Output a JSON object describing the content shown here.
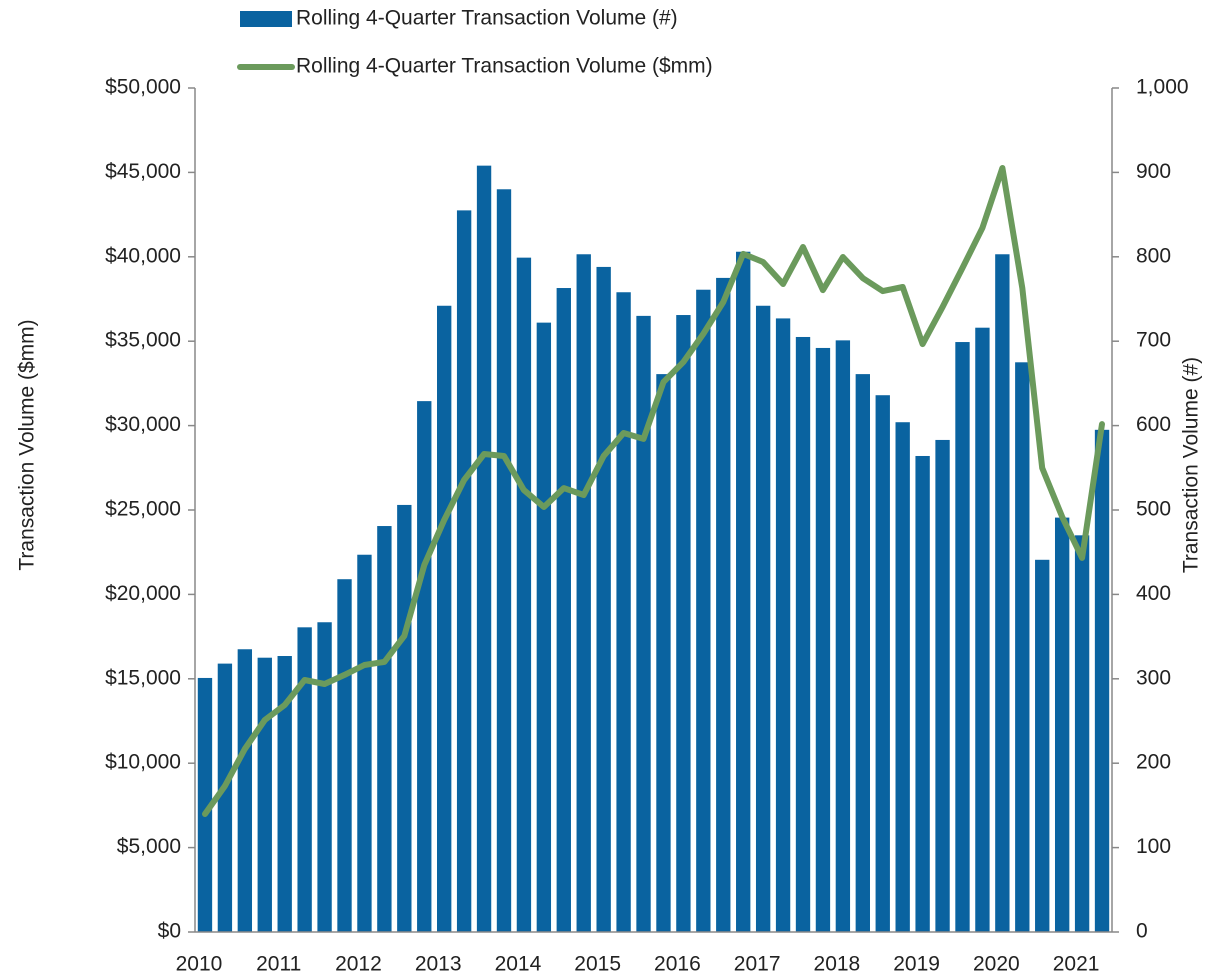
{
  "chart_data": {
    "type": "bar_line",
    "categories": [
      "2010",
      null,
      null,
      null,
      "2011",
      null,
      null,
      null,
      "2012",
      null,
      null,
      null,
      "2013",
      null,
      null,
      null,
      "2014",
      null,
      null,
      null,
      "2015",
      null,
      null,
      null,
      "2016",
      null,
      null,
      null,
      "2017",
      null,
      null,
      null,
      "2018",
      null,
      null,
      null,
      "2019",
      null,
      null,
      null,
      "2020",
      null,
      null,
      null,
      "2021",
      null
    ],
    "ylabel": "Transaction Volume ($mm)",
    "y2label": "Transaction Volume (#)",
    "ylim": [
      0,
      50000
    ],
    "yticks": [
      {
        "value": 0,
        "label": "$0"
      },
      {
        "value": 5000,
        "label": "$5,000"
      },
      {
        "value": 10000,
        "label": "$10,000"
      },
      {
        "value": 15000,
        "label": "$15,000"
      },
      {
        "value": 20000,
        "label": "$20,000"
      },
      {
        "value": 25000,
        "label": "$25,000"
      },
      {
        "value": 30000,
        "label": "$30,000"
      },
      {
        "value": 35000,
        "label": "$35,000"
      },
      {
        "value": 40000,
        "label": "$40,000"
      },
      {
        "value": 45000,
        "label": "$45,000"
      },
      {
        "value": 50000,
        "label": "$50,000"
      }
    ],
    "y2lim": [
      0,
      1000
    ],
    "y2ticks": [
      0,
      100,
      200,
      300,
      400,
      500,
      600,
      700,
      800,
      900,
      {
        "value": 1000,
        "label": "1,000"
      }
    ],
    "series": [
      {
        "name": "Rolling 4-Quarter Transaction Volume (#)",
        "type": "bar",
        "axis": "y2",
        "color": "#0a63a0",
        "values": [
          301,
          318,
          335,
          325,
          327,
          361,
          367,
          418,
          447,
          481,
          506,
          629,
          742,
          855,
          908,
          880,
          799,
          722,
          763,
          803,
          788,
          758,
          730,
          661,
          731,
          761,
          775,
          806,
          742,
          727,
          705,
          692,
          701,
          661,
          636,
          604,
          564,
          583,
          699,
          716,
          803,
          675,
          441,
          491,
          470,
          595
        ]
      },
      {
        "name": "Rolling 4-Quarter Transaction Volume ($mm)",
        "type": "line",
        "axis": "y",
        "color": "#6b9a5c",
        "values": [
          6990,
          8650,
          10840,
          12560,
          13450,
          14930,
          14690,
          15230,
          15820,
          16000,
          17540,
          21740,
          24410,
          26780,
          28320,
          28200,
          26180,
          25180,
          26300,
          25890,
          28200,
          29560,
          29210,
          32580,
          33770,
          35430,
          37320,
          40170,
          39690,
          38390,
          40580,
          38030,
          39990,
          38740,
          37970,
          38210,
          34830,
          37030,
          39340,
          41710,
          45260,
          38150,
          27490,
          24590,
          22160,
          30090
        ]
      }
    ]
  }
}
